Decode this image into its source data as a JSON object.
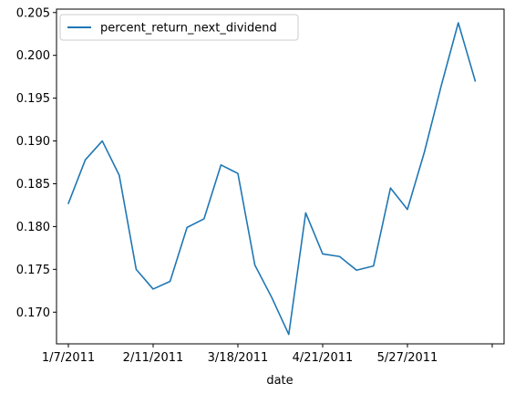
{
  "chart_data": {
    "type": "line",
    "xlabel": "date",
    "ylabel": "",
    "title": "",
    "grid": false,
    "legend_position": "top-left",
    "x_tick_labels": [
      "1/7/2011",
      "2/11/2011",
      "3/18/2011",
      "4/21/2011",
      "5/27/2011",
      ""
    ],
    "x_tick_indices": [
      0,
      5,
      10,
      15,
      20,
      25
    ],
    "x_range_indices": [
      -0.7,
      25.7
    ],
    "y_ticks": [
      0.17,
      0.175,
      0.18,
      0.185,
      0.19,
      0.195,
      0.2,
      0.205
    ],
    "y_tick_labels": [
      "0.170",
      "0.175",
      "0.180",
      "0.185",
      "0.190",
      "0.195",
      "0.200",
      "0.205"
    ],
    "ylim": [
      0.1663,
      0.2054
    ],
    "series": [
      {
        "name": "percent_return_next_dividend",
        "color": "#1f77b4",
        "values": [
          0.1827,
          0.1878,
          0.19,
          0.186,
          0.175,
          0.1727,
          0.1736,
          0.1799,
          0.1809,
          0.1872,
          0.1862,
          0.1755,
          0.1717,
          0.1674,
          0.1816,
          0.1768,
          0.1765,
          0.1749,
          0.1754,
          0.1845,
          0.182,
          0.1887,
          0.1965,
          0.2038,
          0.197
        ]
      }
    ]
  }
}
